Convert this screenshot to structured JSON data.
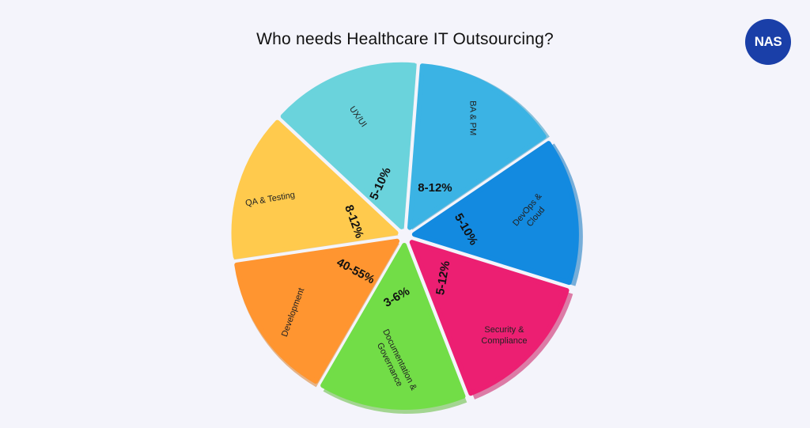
{
  "title": "Who needs Healthcare IT Outsourcing?",
  "logo": {
    "text": "NAS",
    "color": "#1a3fa8"
  },
  "chart_data": {
    "type": "pie",
    "title": "Who needs Healthcare IT Outsourcing?",
    "legend": "none",
    "slices": [
      {
        "label": "UX/UI",
        "value": "5-10%",
        "color": "#6ad3dc"
      },
      {
        "label": "BA & PM",
        "value": "8-12%",
        "color": "#3bb3e4"
      },
      {
        "label": "DevOps & Cloud",
        "value": "5-10%",
        "color": "#138ae0"
      },
      {
        "label": "Security & Compliance",
        "value": "5-12%",
        "color": "#ec1f72"
      },
      {
        "label": "Documentation & Governance",
        "value": "3-6%",
        "color": "#72dd47"
      },
      {
        "label": "Development",
        "value": "40-55%",
        "color": "#ff9530"
      },
      {
        "label": "QA & Testing",
        "value": "8-12%",
        "color": "#ffca4d"
      }
    ]
  }
}
